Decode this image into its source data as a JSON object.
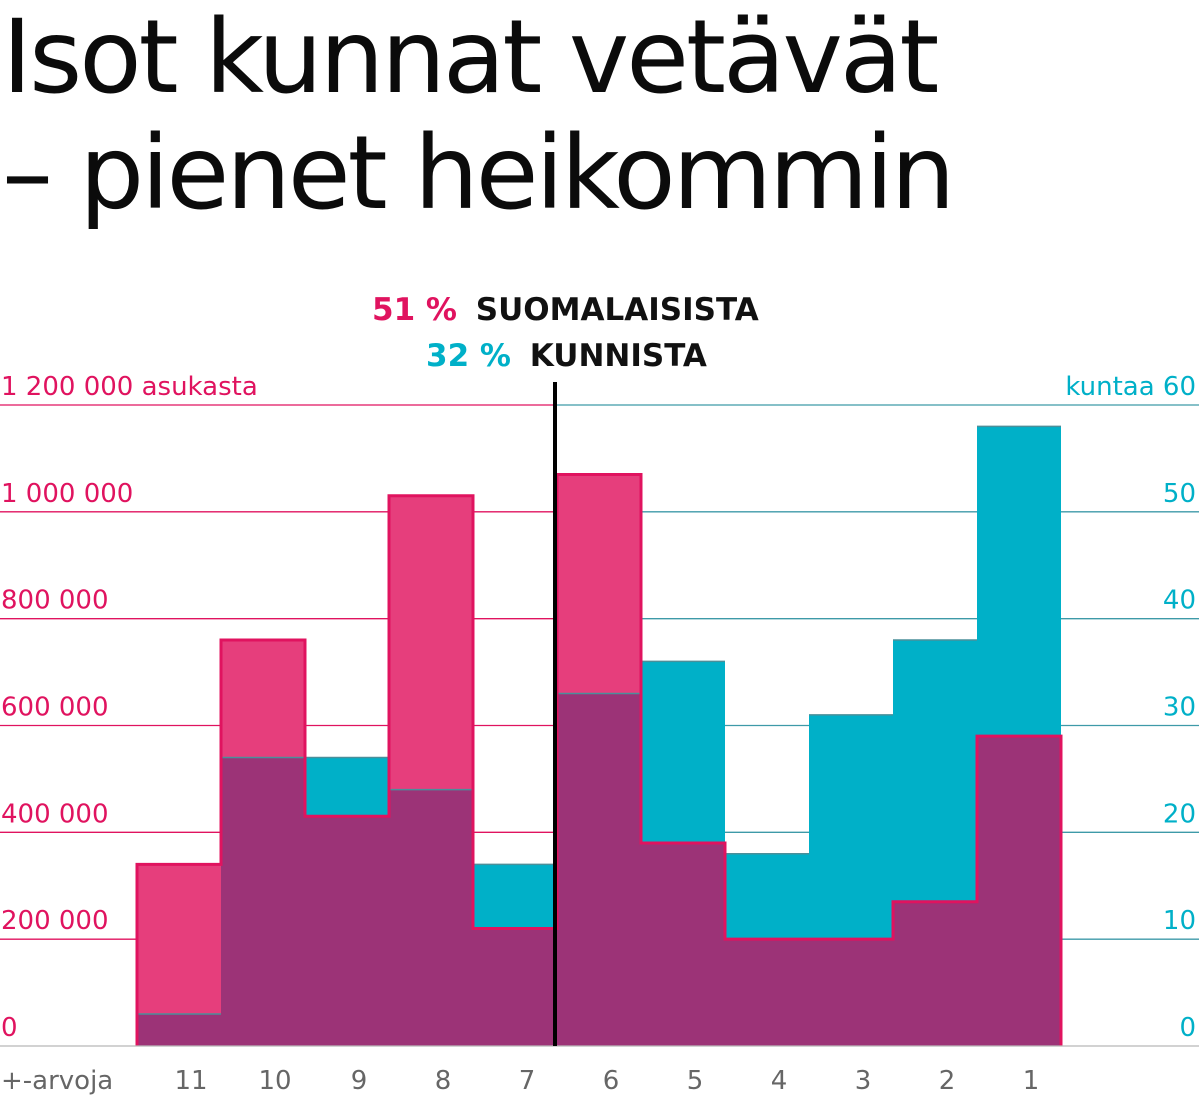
{
  "title": {
    "line1": "Isot kunnat vetävät",
    "line2": "– pienet heikommin"
  },
  "annotation": {
    "line1_value": "51 %",
    "line1_text": "SUOMALAISISTA",
    "line2_value": "32 %",
    "line2_text": "KUNNISTA",
    "line1_color": "#e0135f",
    "line2_color": "#00b0c8"
  },
  "colors": {
    "population": "#e63e7c",
    "population_line": "#e0135f",
    "municipalities": "#00b0c8",
    "overlap": "#9c3377",
    "left_axis": "#e0135f",
    "right_axis": "#00b0c8",
    "divider": "#000000"
  },
  "chart_data": {
    "type": "bar",
    "xlabel": "+-arvoja",
    "categories": [
      "11",
      "10",
      "9",
      "8",
      "7",
      "6",
      "5",
      "4",
      "3",
      "2",
      "1"
    ],
    "divider_between": [
      "7",
      "6"
    ],
    "left_axis": {
      "ylim": [
        0,
        1200000
      ],
      "ticks": [
        {
          "value": 0,
          "label": "0"
        },
        {
          "value": 200000,
          "label": "200 000"
        },
        {
          "value": 400000,
          "label": "400 000"
        },
        {
          "value": 600000,
          "label": "600 000"
        },
        {
          "value": 800000,
          "label": "800 000"
        },
        {
          "value": 1000000,
          "label": "1 000 000"
        },
        {
          "value": 1200000,
          "label": "1 200 000 asukasta"
        }
      ]
    },
    "right_axis": {
      "ylim": [
        0,
        60
      ],
      "ticks": [
        {
          "value": 0,
          "label": "0"
        },
        {
          "value": 10,
          "label": "10"
        },
        {
          "value": 20,
          "label": "20"
        },
        {
          "value": 30,
          "label": "30"
        },
        {
          "value": 40,
          "label": "40"
        },
        {
          "value": 50,
          "label": "50"
        },
        {
          "value": 60,
          "label": "kuntaa 60"
        }
      ]
    },
    "series": [
      {
        "key": "population",
        "axis": "left",
        "values": [
          340000,
          760000,
          430000,
          1030000,
          220000,
          1070000,
          380000,
          200000,
          200000,
          270000,
          580000
        ]
      },
      {
        "key": "municipalities",
        "axis": "right",
        "values": [
          3,
          27,
          27,
          24,
          17,
          33,
          36,
          18,
          31,
          38,
          58
        ]
      }
    ]
  }
}
